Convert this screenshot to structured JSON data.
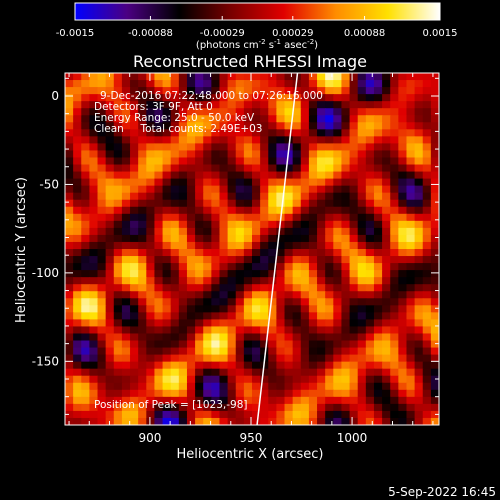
{
  "chart_data": {
    "type": "heatmap",
    "title": "Reconstructed RHESSI Image",
    "xlabel": "Heliocentric X (arcsec)",
    "ylabel": "Heliocentric Y (arcsec)",
    "xlim": [
      858,
      1043
    ],
    "ylim": [
      -186,
      13
    ],
    "xticks": [
      900,
      950,
      1000
    ],
    "yticks": [
      0,
      -50,
      -100,
      -150
    ],
    "colorbar": {
      "ticks": [
        -0.0015,
        -0.00088,
        -0.00029,
        0.00029,
        0.00088,
        0.0015
      ],
      "tick_labels": [
        "-0.0015",
        "-0.00088",
        "-0.00029",
        "0.00029",
        "0.00088",
        "0.0015"
      ],
      "units_html": "(photons cm<tspan dy='-4' font-size='7'>-2</tspan><tspan dy='4'> s</tspan><tspan dy='-4' font-size='7'>-1</tspan><tspan dy='4'> asec</tspan><tspan dy='-4' font-size='7'>-2</tspan><tspan dy='4'>)</tspan>",
      "range": [
        -0.0015,
        0.0015
      ],
      "colors": [
        "#0000ff",
        "#4b0082",
        "#000000",
        "#7a0000",
        "#e00000",
        "#ff8c00",
        "#ffe000",
        "#ffffff"
      ]
    },
    "annotations": [
      "9-Dec-2016 07:22:48.000 to 07:26:16.000",
      "Detectors: 3F 9F, Att 0",
      "Energy Range: 25.0 - 50.0 keV",
      "Clean     Total counts: 2.49E+03"
    ],
    "peak_label": "Position of Peak = [1023,-98]",
    "limb": [
      [
        953,
        -186
      ],
      [
        973,
        13
      ]
    ],
    "grid_size": [
      46,
      50
    ]
  },
  "footer": {
    "timestamp": "5-Sep-2022 16:45"
  }
}
